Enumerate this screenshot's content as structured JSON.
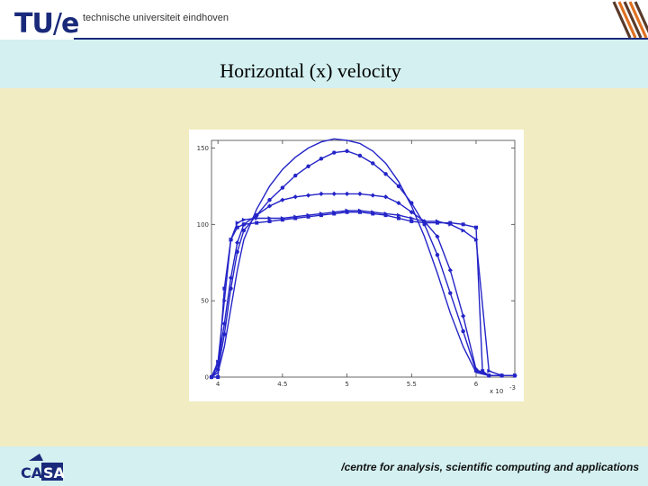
{
  "header": {
    "logo_text": "TU",
    "logo_slash": "/",
    "logo_e": "e",
    "university": "technische universiteit eindhoven"
  },
  "slide": {
    "title": "Horizontal (x) velocity"
  },
  "footer": {
    "text": "/centre for analysis, scientific computing and applications",
    "logo_text": "CASA"
  },
  "colors": {
    "series": "#2424c8",
    "header_rule": "#1a2a7a",
    "band": "#d4f0f0",
    "content_bg": "#f1ecc2"
  },
  "chart_data": {
    "type": "line",
    "title": "",
    "xlabel": "",
    "ylabel": "",
    "x_multiplier": "x 10",
    "x_multiplier_exp": "-3",
    "xlim": [
      3.95,
      6.3
    ],
    "ylim": [
      0,
      155
    ],
    "xticks": [
      4,
      4.5,
      5,
      5.5,
      6
    ],
    "xtick_labels": [
      "4",
      "4.5",
      "5",
      "5.5",
      "6"
    ],
    "yticks": [
      0,
      50,
      100,
      150
    ],
    "ytick_labels": [
      "0",
      "50",
      "100",
      "150"
    ],
    "series": [
      {
        "marker": "none",
        "x": [
          3.95,
          4.0,
          4.05,
          4.1,
          4.15,
          4.2,
          4.3,
          4.4,
          4.5,
          4.6,
          4.7,
          4.8,
          4.9,
          5.0,
          5.1,
          5.2,
          5.3,
          5.4,
          5.5,
          5.6,
          5.7,
          5.8,
          5.9,
          6.0,
          6.1,
          6.2,
          6.3
        ],
        "y": [
          0,
          3,
          20,
          45,
          70,
          90,
          110,
          125,
          136,
          144,
          150,
          154,
          156,
          155,
          153,
          148,
          140,
          128,
          112,
          92,
          68,
          42,
          20,
          3,
          1,
          1,
          1
        ]
      },
      {
        "marker": "circle",
        "x": [
          3.95,
          4.0,
          4.05,
          4.1,
          4.15,
          4.2,
          4.3,
          4.4,
          4.5,
          4.6,
          4.7,
          4.8,
          4.9,
          5.0,
          5.1,
          5.2,
          5.3,
          5.4,
          5.5,
          5.6,
          5.7,
          5.8,
          5.9,
          6.0,
          6.1,
          6.2,
          6.3
        ],
        "y": [
          0,
          5,
          28,
          58,
          82,
          96,
          106,
          116,
          124,
          132,
          138,
          143,
          147,
          148,
          145,
          140,
          133,
          125,
          114,
          100,
          80,
          55,
          30,
          4,
          1,
          1,
          1
        ]
      },
      {
        "marker": "diamond",
        "x": [
          3.95,
          4.0,
          4.05,
          4.1,
          4.15,
          4.2,
          4.3,
          4.4,
          4.5,
          4.6,
          4.7,
          4.8,
          4.9,
          5.0,
          5.1,
          5.2,
          5.3,
          5.4,
          5.5,
          5.6,
          5.7,
          5.8,
          5.9,
          6.0,
          6.1,
          6.2,
          6.3
        ],
        "y": [
          0,
          8,
          35,
          65,
          88,
          100,
          106,
          112,
          116,
          118,
          119,
          120,
          120,
          120,
          120,
          119,
          118,
          114,
          108,
          102,
          92,
          70,
          40,
          5,
          1,
          1,
          1
        ]
      },
      {
        "marker": "triangle",
        "x": [
          3.95,
          4.0,
          4.05,
          4.1,
          4.15,
          4.2,
          4.3,
          4.4,
          4.5,
          4.6,
          4.7,
          4.8,
          4.9,
          5.0,
          5.1,
          5.2,
          5.3,
          5.4,
          5.5,
          5.6,
          5.7,
          5.8,
          5.9,
          6.0,
          6.1,
          6.2,
          6.3
        ],
        "y": [
          0,
          10,
          50,
          90,
          101,
          103,
          104,
          104,
          104,
          105,
          106,
          107,
          108,
          109,
          109,
          108,
          107,
          106,
          104,
          102,
          102,
          100,
          96,
          90,
          4,
          1,
          1
        ]
      },
      {
        "marker": "square",
        "x": [
          3.95,
          4.0,
          4.05,
          4.1,
          4.15,
          4.2,
          4.3,
          4.4,
          4.5,
          4.6,
          4.7,
          4.8,
          4.9,
          5.0,
          5.1,
          5.2,
          5.3,
          5.4,
          5.5,
          5.6,
          5.7,
          5.8,
          5.9,
          6.0,
          6.05,
          6.1,
          6.2,
          6.3
        ],
        "y": [
          0,
          0,
          58,
          90,
          98,
          100,
          101,
          102,
          103,
          104,
          105,
          106,
          107,
          108,
          108,
          107,
          106,
          104,
          102,
          101,
          101,
          101,
          100,
          98,
          4,
          1,
          1,
          1
        ]
      }
    ]
  }
}
